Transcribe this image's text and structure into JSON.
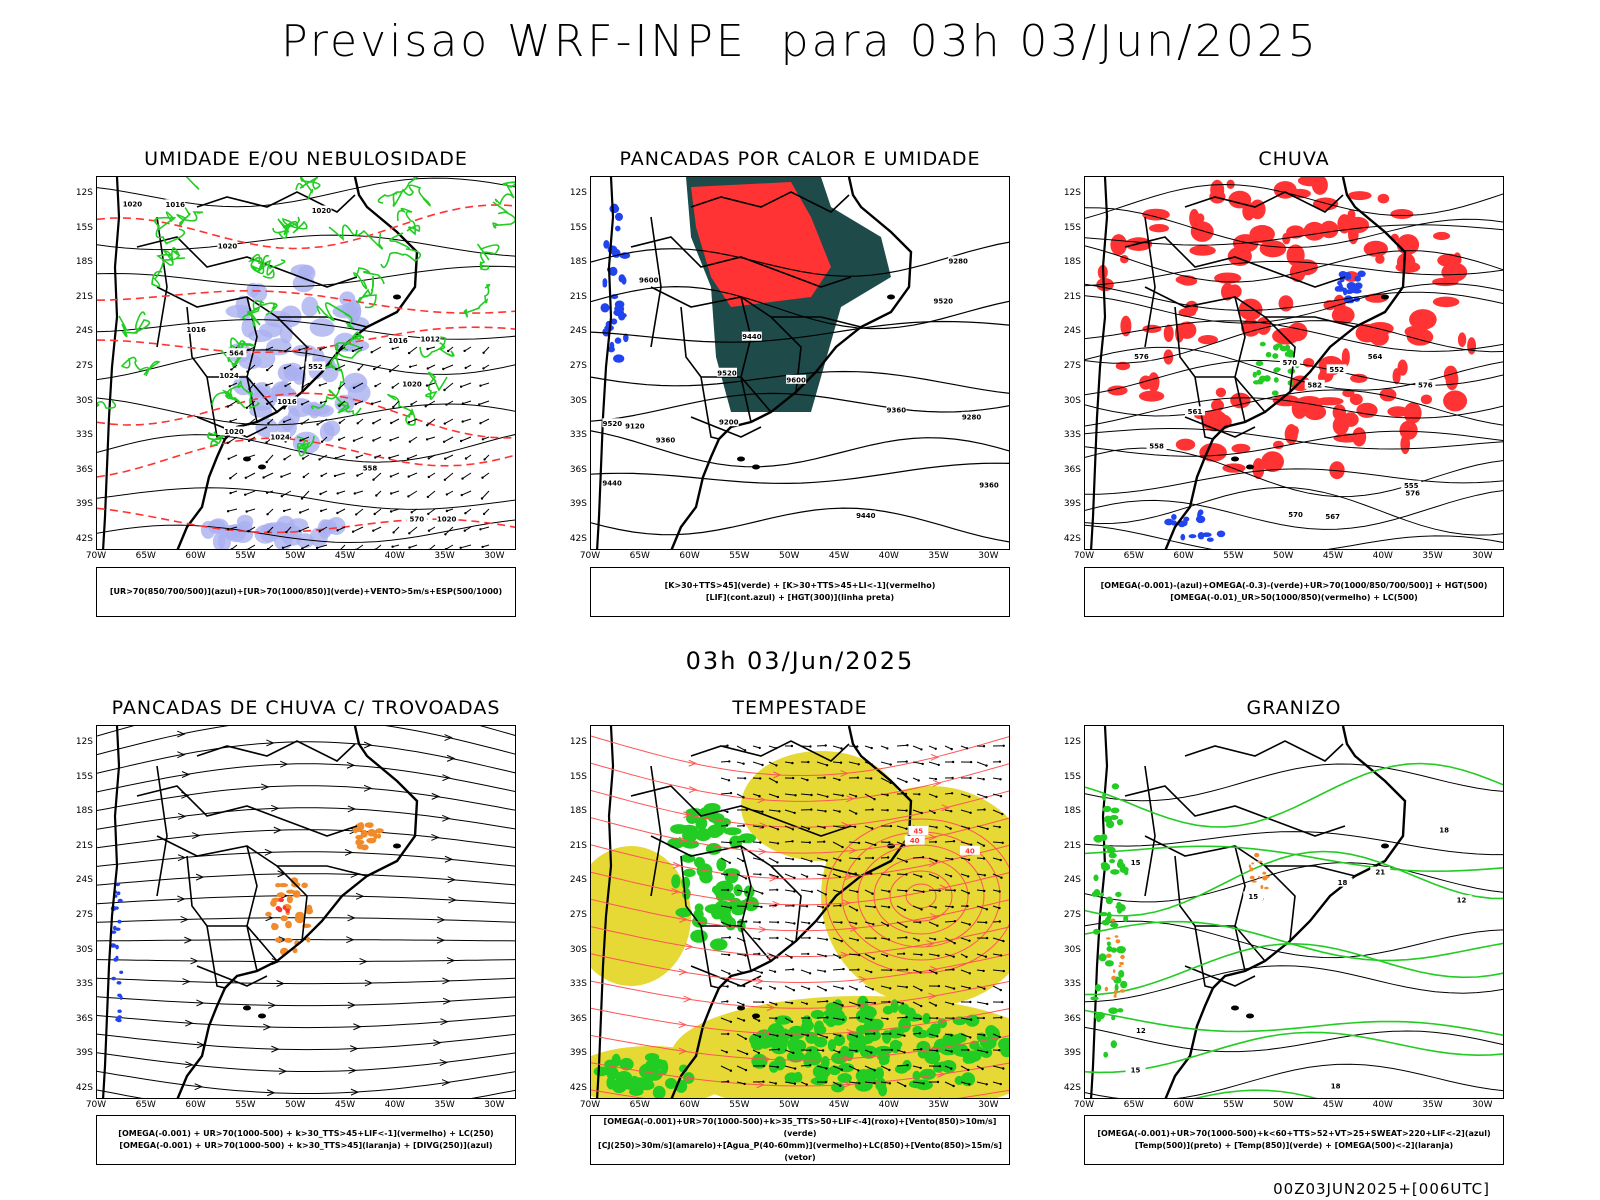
{
  "title": "Previsao WRF-INPE  para 03h 03/Jun/2025",
  "mid_title": "03h 03/Jun/2025",
  "footer": "00Z03JUN2025+[006UTC]",
  "lat_ticks": [
    "12S",
    "15S",
    "18S",
    "21S",
    "24S",
    "27S",
    "30S",
    "33S",
    "36S",
    "39S",
    "42S"
  ],
  "lon_ticks": [
    "70W",
    "65W",
    "60W",
    "55W",
    "50W",
    "45W",
    "40W",
    "35W",
    "30W"
  ],
  "colors": {
    "humidity_blue": "#aab0f0",
    "green": "#22cc22",
    "red": "#ff3333",
    "dark_teal": "#1e4a4a",
    "yellow": "#e6d835",
    "orange": "#f08a2a",
    "blue": "#2244ee"
  },
  "panels": [
    {
      "title": "UMIDADE E/OU NEBULOSIDADE",
      "legend": [
        "[UR>70(850/700/500)](azul)+[UR>70(1000/850)](verde)+VENTO>5m/s+ESP(500/1000)"
      ],
      "labels": [
        "1016",
        "1016",
        "1016",
        "1020",
        "1020",
        "1020",
        "1024",
        "1024",
        "1020",
        "1016",
        "1012",
        "1020",
        "1020",
        "570",
        "564",
        "558",
        "552"
      ]
    },
    {
      "title": "PANCADAS POR CALOR E UMIDADE",
      "legend": [
        "[K>30+TTS>45](verde) + [K>30+TTS>45+LI<-1](vermelho)",
        "[LIF](cont.azul) + [HGT(300)](linha preta)"
      ],
      "labels": [
        "9600",
        "9520",
        "9600",
        "9520",
        "9440",
        "9520",
        "9440",
        "9360",
        "9360",
        "9280",
        "9200",
        "9120",
        "9440",
        "9280",
        "9360"
      ]
    },
    {
      "title": "CHUVA",
      "legend": [
        "[OMEGA(-0.001)-(azul)+OMEGA(-0.3)-(verde)+UR>70(1000/850/700/500)] + HGT(500)",
        "[OMEGA(-0.01)_UR>50(1000/850)(vermelho) + LC(500)"
      ],
      "labels": [
        "582",
        "576",
        "576",
        "576",
        "570",
        "570",
        "567",
        "564",
        "561",
        "558",
        "555",
        "552"
      ]
    },
    {
      "title": "PANCADAS DE CHUVA C/ TROVOADAS",
      "legend": [
        "[OMEGA(-0.001) + UR>70(1000-500) + k>30_TTS>45+LIF<-1](vermelho) + LC(250)",
        "[OMEGA(-0.001) + UR>70(1000-500) + k>30_TTS>45](laranja) + [DIVG(250)](azul)"
      ],
      "labels": []
    },
    {
      "title": "TEMPESTADE",
      "legend": [
        "[OMEGA(-0.001)+UR>70(1000-500)+k>35_TTS>50+LIF<-4](roxo)+[Vento(850)>10m/s](verde)",
        "[CJ(250)>30m/s](amarelo)+[Agua_P(40-60mm)](vermelho)+LC(850)+[Vento(850)>15m/s](vetor)"
      ],
      "labels": [
        "40",
        "45",
        "40"
      ]
    },
    {
      "title": "GRANIZO",
      "legend": [
        "[OMEGA(-0.001)+UR>70(1000-500)+k<60+TTS>52+VT>25+SWEAT>220+LIF<-2](azul)",
        "[Temp(500)](preto) + [Temp(850)](verde) + [OMEGA(500)<-2](laranja)"
      ],
      "labels": [
        "18",
        "15",
        "12",
        "18",
        "15",
        "18",
        "21",
        "12",
        "15"
      ]
    }
  ]
}
